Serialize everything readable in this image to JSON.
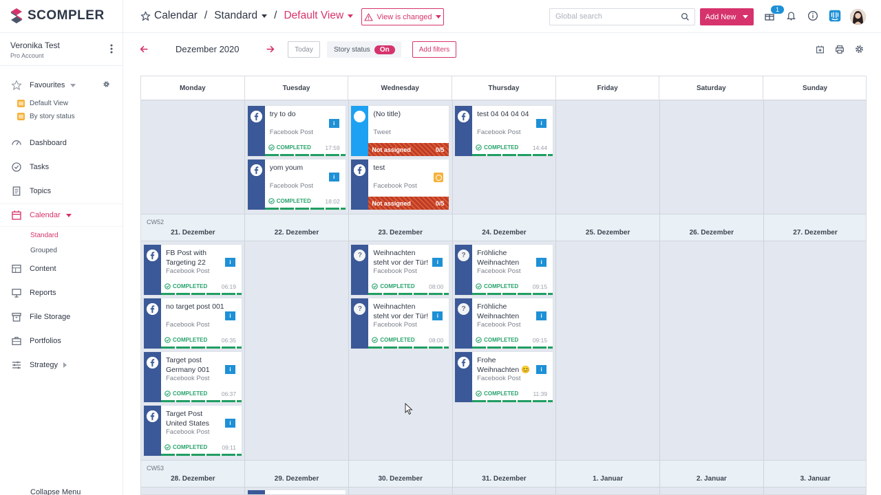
{
  "app": {
    "logo": "SCOMPLER"
  },
  "header": {
    "crumb_calendar": "Calendar",
    "crumb_sep1": "/",
    "crumb_standard": "Standard",
    "crumb_sep2": "/",
    "crumb_view": "Default View",
    "view_changed": "View is changed",
    "search_placeholder": "Global search",
    "add_new": "Add New",
    "notif_badge": "1"
  },
  "sidebar": {
    "user_name": "Veronika Test",
    "account": "Pro Account",
    "favourites_label": "Favourites",
    "favourites": [
      "Default View",
      "By story status"
    ],
    "nav": [
      "Dashboard",
      "Tasks",
      "Topics",
      "Calendar",
      "Content",
      "Reports",
      "File Storage",
      "Portfolios",
      "Strategy"
    ],
    "calendar_sub": [
      "Standard",
      "Grouped"
    ],
    "collapse": "Collapse Menu"
  },
  "toolbar": {
    "month": "Dezember 2020",
    "today": "Today",
    "story_status": "Story status",
    "story_toggle": "On",
    "add_filters": "Add filters"
  },
  "calendar": {
    "days": [
      "Monday",
      "Tuesday",
      "Wednesday",
      "Thursday",
      "Friday",
      "Saturday",
      "Sunday"
    ],
    "weeks": [
      {
        "cw": "CW52",
        "dates": [
          "21. Dezember",
          "22. Dezember",
          "23. Dezember",
          "24. Dezember",
          "25. Dezember",
          "26. Dezember",
          "27. Dezember"
        ]
      },
      {
        "cw": "CW53",
        "dates": [
          "28. Dezember",
          "29. Dezember",
          "30. Dezember",
          "31. Dezember",
          "1. Januar",
          "2. Januar",
          "3. Januar"
        ]
      }
    ],
    "status_completed": "COMPLETED",
    "not_assigned": "Not assigned",
    "not_assigned_count": "0/5",
    "cards_prev_week": [
      {
        "day": 1,
        "slot": 0,
        "network": "facebook",
        "title": "try to do",
        "type": "Facebook Post",
        "time": "17:59"
      },
      {
        "day": 1,
        "slot": 1,
        "network": "facebook",
        "title": "yom youm",
        "type": "Facebook Post",
        "time": "18:02"
      },
      {
        "day": 2,
        "slot": 0,
        "network": "twitter",
        "title": "(No title)",
        "type": "Tweet",
        "time": ""
      },
      {
        "day": 2,
        "slot": 1,
        "network": "facebook",
        "title": "test",
        "type": "Facebook Post",
        "time": ""
      },
      {
        "day": 3,
        "slot": 0,
        "network": "facebook",
        "title": "test 04 04 04 04",
        "type": "Facebook Post",
        "time": "14:44"
      }
    ],
    "cards_cw52": [
      {
        "day": 0,
        "slot": 0,
        "network": "facebook",
        "title": "FB Post with",
        "title2": "Targeting 22",
        "type": "Facebook Post",
        "time": "06:19"
      },
      {
        "day": 0,
        "slot": 1,
        "network": "facebook",
        "title": "no target post 001",
        "title2": "",
        "type": "Facebook Post",
        "time": "06:35"
      },
      {
        "day": 0,
        "slot": 2,
        "network": "facebook",
        "title": "Target post",
        "title2": "Germany 001",
        "type": "Facebook Post",
        "time": "06:37"
      },
      {
        "day": 0,
        "slot": 3,
        "network": "facebook",
        "title": "Target Post",
        "title2": "United States",
        "type": "Facebook Post",
        "time": "09:11"
      },
      {
        "day": 2,
        "slot": 0,
        "network": "unknown",
        "title": "Weihnachten",
        "title2": "steht vor der Tür!",
        "type": "Facebook Post",
        "time": "08:00"
      },
      {
        "day": 2,
        "slot": 1,
        "network": "unknown",
        "title": "Weihnachten",
        "title2": "steht vor der Tür!",
        "type": "Facebook Post",
        "time": "08:00"
      },
      {
        "day": 3,
        "slot": 0,
        "network": "unknown",
        "title": "Fröhliche",
        "title2": "Weihnachten",
        "type": "Facebook Post",
        "time": "09:15"
      },
      {
        "day": 3,
        "slot": 1,
        "network": "unknown",
        "title": "Fröhliche",
        "title2": "Weihnachten",
        "type": "Facebook Post",
        "time": "09:15"
      },
      {
        "day": 3,
        "slot": 2,
        "network": "facebook",
        "title": "Frohe",
        "title2": "Weihnachten 😊",
        "type": "Facebook Post",
        "time": "11:39"
      }
    ]
  }
}
